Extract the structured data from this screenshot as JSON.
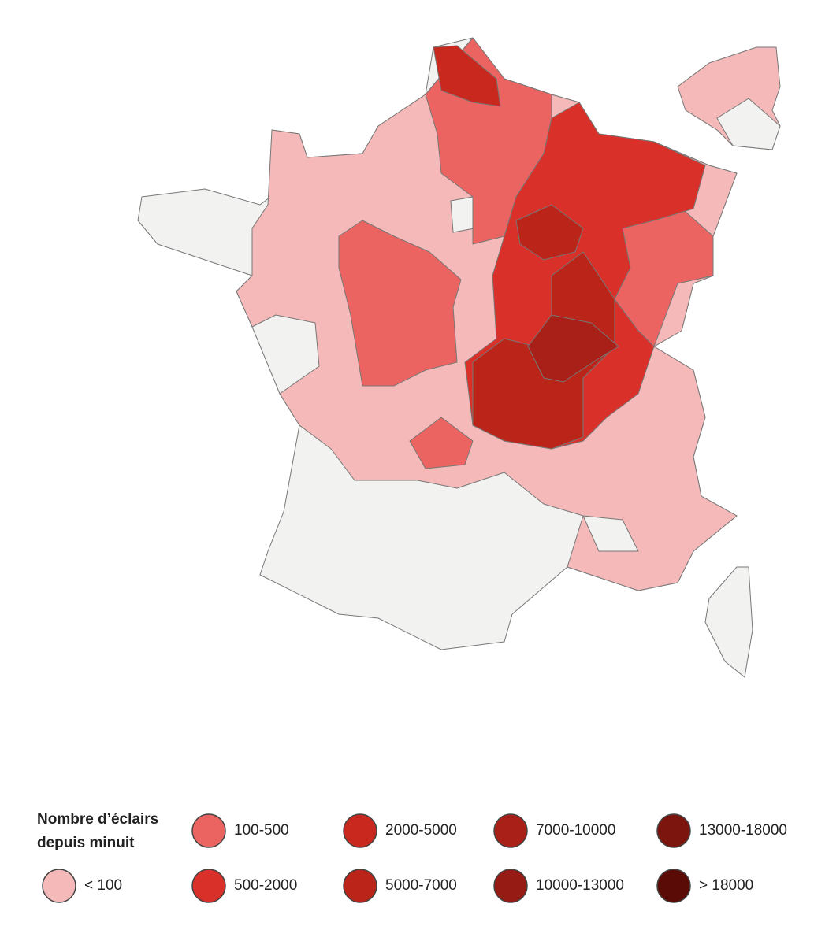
{
  "legend": {
    "title_lines": [
      "Nombre d’éclairs",
      "depuis minuit"
    ],
    "items": [
      {
        "label": "< 100",
        "color": "#f4b9b8"
      },
      {
        "label": "100-500",
        "color": "#eb6461"
      },
      {
        "label": "500-2000",
        "color": "#d9302a"
      },
      {
        "label": "2000-5000",
        "color": "#c9281f"
      },
      {
        "label": "5000-7000",
        "color": "#bb2419"
      },
      {
        "label": "7000-10000",
        "color": "#a82018"
      },
      {
        "label": "10000-13000",
        "color": "#961b14"
      },
      {
        "label": "13000-18000",
        "color": "#7d150f"
      },
      {
        "label": "> 18000",
        "color": "#5a0b05"
      }
    ]
  }
}
